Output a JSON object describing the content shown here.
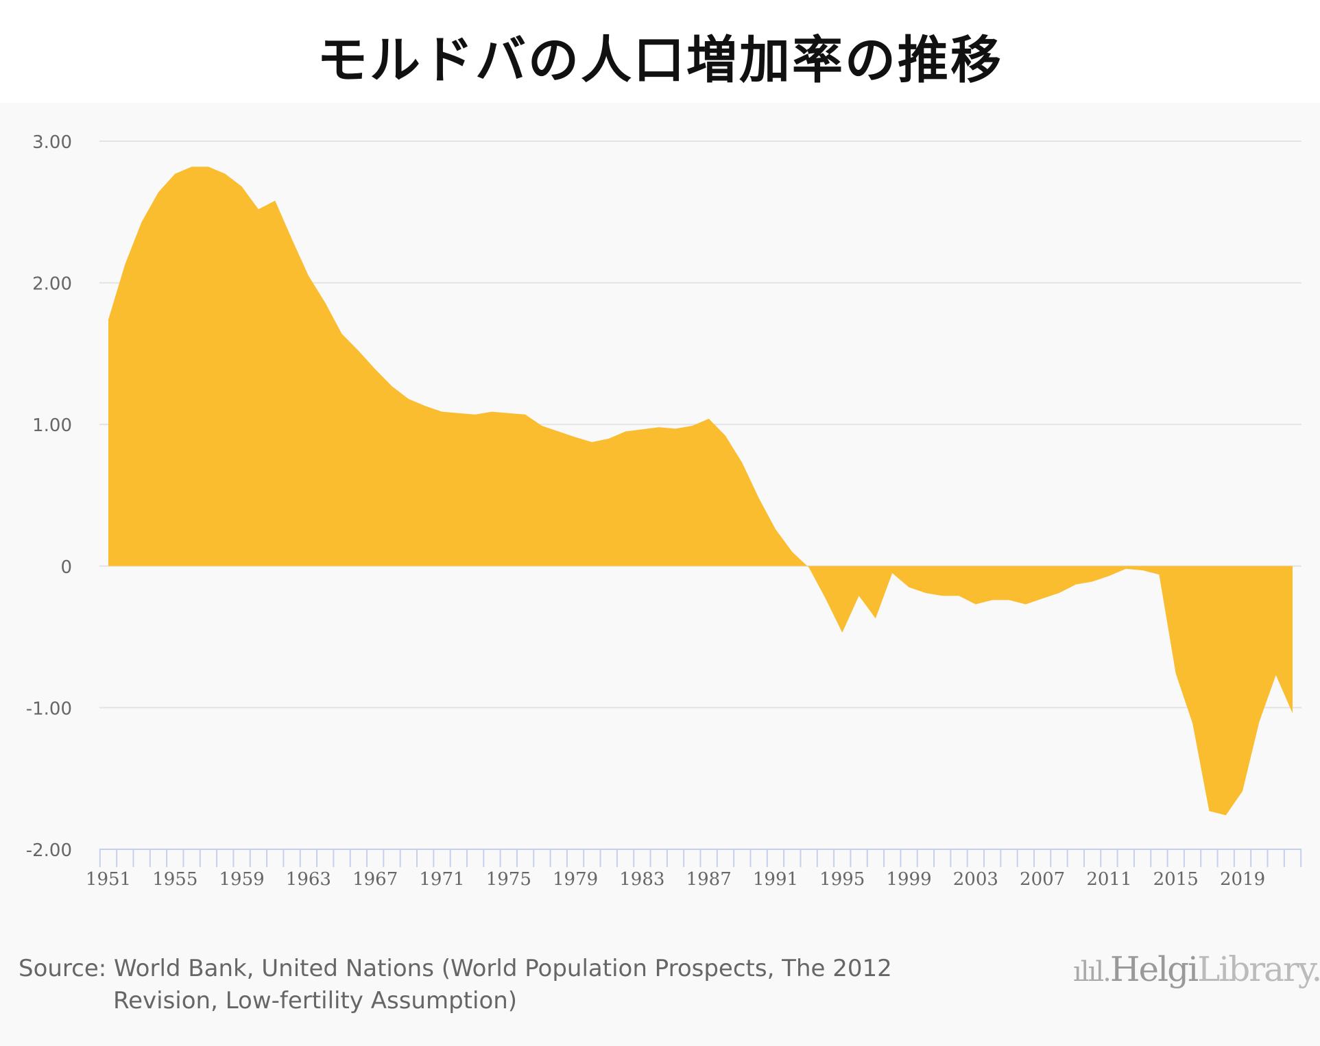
{
  "title": "モルドバの人口増加率の推移",
  "source_line1": "Source: World Bank, United Nations (World Population Prospects, The 2012",
  "source_line2": "Revision, Low-fertility Assumption)",
  "logo": {
    "part1": "Helgi",
    "part2": "Library."
  },
  "colors": {
    "fill": "#f9bd2f",
    "grid": "#e3e3e3",
    "tick": "#c5d0ee",
    "label": "#666666"
  },
  "chart_data": {
    "type": "area",
    "title": "モルドバの人口増加率の推移",
    "xlabel": "",
    "ylabel": "",
    "ylim": [
      -2,
      3
    ],
    "yticks": [
      3,
      2,
      1,
      0,
      -1,
      -2
    ],
    "ytick_labels": [
      "3.00",
      "2.00",
      "1.00",
      "0",
      "-1.00",
      "-2.00"
    ],
    "xtick_labels": [
      "1951",
      "1955",
      "1959",
      "1963",
      "1967",
      "1971",
      "1975",
      "1979",
      "1983",
      "1987",
      "1991",
      "1995",
      "1999",
      "2003",
      "2007",
      "2011",
      "2015",
      "2019"
    ],
    "grid": true,
    "x": [
      1951,
      1952,
      1953,
      1954,
      1955,
      1956,
      1957,
      1958,
      1959,
      1960,
      1961,
      1962,
      1963,
      1964,
      1965,
      1966,
      1967,
      1968,
      1969,
      1970,
      1971,
      1972,
      1973,
      1974,
      1975,
      1976,
      1977,
      1978,
      1979,
      1980,
      1981,
      1982,
      1983,
      1984,
      1985,
      1986,
      1987,
      1988,
      1989,
      1990,
      1991,
      1992,
      1993,
      1994,
      1995,
      1996,
      1997,
      1998,
      1999,
      2000,
      2001,
      2002,
      2003,
      2004,
      2005,
      2006,
      2007,
      2008,
      2009,
      2010,
      2011,
      2012,
      2013,
      2014,
      2015,
      2016,
      2017,
      2018,
      2019,
      2020,
      2021,
      2022
    ],
    "values": [
      1.74,
      2.13,
      2.43,
      2.64,
      2.77,
      2.82,
      2.82,
      2.77,
      2.68,
      2.52,
      2.58,
      2.31,
      2.05,
      1.86,
      1.64,
      1.52,
      1.39,
      1.27,
      1.18,
      1.13,
      1.09,
      1.08,
      1.07,
      1.09,
      1.08,
      1.07,
      0.99,
      0.95,
      0.91,
      0.875,
      0.9,
      0.95,
      0.965,
      0.98,
      0.97,
      0.99,
      1.04,
      0.92,
      0.73,
      0.48,
      0.26,
      0.1,
      -0.01,
      -0.23,
      -0.47,
      -0.21,
      -0.37,
      -0.05,
      -0.15,
      -0.19,
      -0.21,
      -0.21,
      -0.27,
      -0.24,
      -0.24,
      -0.27,
      -0.23,
      -0.19,
      -0.13,
      -0.11,
      -0.07,
      -0.02,
      -0.03,
      -0.06,
      -0.76,
      -1.11,
      -1.73,
      -1.76,
      -1.59,
      -1.1,
      -0.77,
      -1.04
    ]
  }
}
